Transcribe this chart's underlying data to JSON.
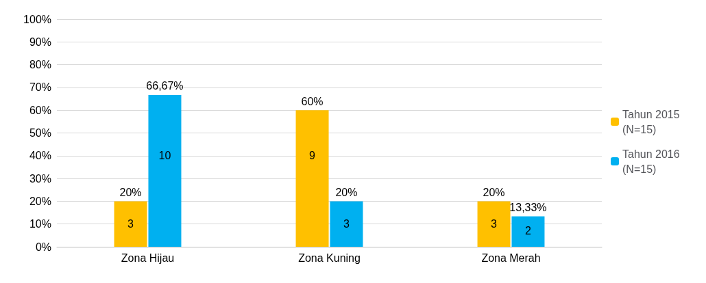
{
  "chart_data": {
    "type": "bar",
    "categories": [
      "Zona Hijau",
      "Zona Kuning",
      "Zona Merah"
    ],
    "series": [
      {
        "name": "Tahun 2015 (N=15)",
        "color": "#ffc000",
        "values": [
          20,
          60,
          20
        ],
        "value_labels": [
          "20%",
          "60%",
          "20%"
        ]
      },
      {
        "name": "Tahun 2016 (N=15)",
        "color": "#00b0f0",
        "values": [
          66.67,
          20,
          13.33
        ],
        "value_labels": [
          "66,67%",
          "20%",
          "13,33%"
        ]
      }
    ],
    "ylim": [
      0,
      100
    ],
    "yticks": [
      {
        "value": 0,
        "label": "0%"
      },
      {
        "value": 10,
        "label": "10%"
      },
      {
        "value": 20,
        "label": "20%"
      },
      {
        "value": 30,
        "label": "30%"
      },
      {
        "value": 40,
        "label": "40%"
      },
      {
        "value": 50,
        "label": "50%"
      },
      {
        "value": 60,
        "label": "60%"
      },
      {
        "value": 70,
        "label": "70%"
      },
      {
        "value": 80,
        "label": "80%"
      },
      {
        "value": 90,
        "label": "90%"
      },
      {
        "value": 100,
        "label": "100%"
      }
    ],
    "annotations": [
      {
        "text": "3",
        "x": "Zona Hijau",
        "y": 10
      },
      {
        "text": "10",
        "x": "Zona Hijau",
        "y": 40
      },
      {
        "text": "9",
        "x": "Zona Kuning",
        "y": 40
      },
      {
        "text": "3",
        "x": "Zona Kuning",
        "y": 10
      },
      {
        "text": "3",
        "x": "Zona Merah",
        "y": 10
      },
      {
        "text": "2",
        "x": "Zona Merah",
        "y": 7
      }
    ],
    "grid": "y",
    "legend": "right"
  }
}
